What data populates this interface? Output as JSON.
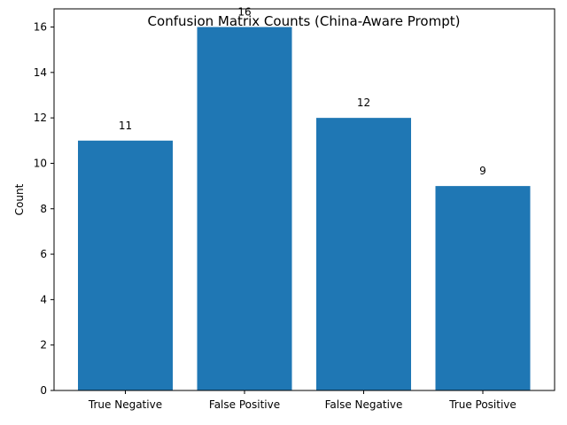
{
  "chart_data": {
    "type": "bar",
    "title": "Confusion Matrix Counts (China-Aware Prompt)",
    "xlabel": "",
    "ylabel": "Count",
    "categories": [
      "True Negative",
      "False Positive",
      "False Negative",
      "True Positive"
    ],
    "values": [
      11,
      16,
      12,
      9
    ],
    "data_labels": [
      "11",
      "16",
      "12",
      "9"
    ],
    "yticks": [
      0,
      2,
      4,
      6,
      8,
      10,
      12,
      14,
      16
    ],
    "ylim": [
      0,
      16.8
    ],
    "bar_color": "#1f77b4",
    "grid": false,
    "legend": "none"
  }
}
